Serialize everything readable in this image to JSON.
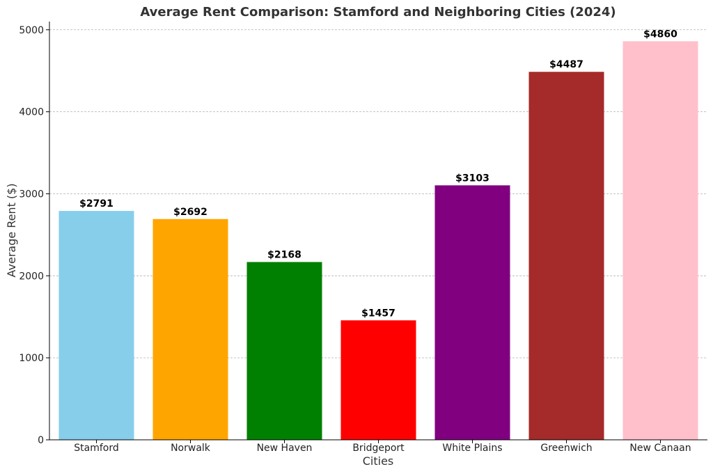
{
  "chart_data": {
    "type": "bar",
    "title": "Average Rent Comparison: Stamford and Neighboring Cities (2024)",
    "xlabel": "Cities",
    "ylabel": "Average Rent ($)",
    "categories": [
      "Stamford",
      "Norwalk",
      "New Haven",
      "Bridgeport",
      "White Plains",
      "Greenwich",
      "New Canaan"
    ],
    "values": [
      2791,
      2692,
      2168,
      1457,
      3103,
      4487,
      4860
    ],
    "value_labels": [
      "$2791",
      "$2692",
      "$2168",
      "$1457",
      "$3103",
      "$4487",
      "$4860"
    ],
    "colors": [
      "#87ceeb",
      "#ffa500",
      "#008000",
      "#ff0000",
      "#800080",
      "#a52a2a",
      "#ffc0cb"
    ],
    "ylim": [
      0,
      5100
    ],
    "yticks": [
      0,
      1000,
      2000,
      3000,
      4000,
      5000
    ],
    "grid": "y-dashed",
    "legend": "none"
  }
}
